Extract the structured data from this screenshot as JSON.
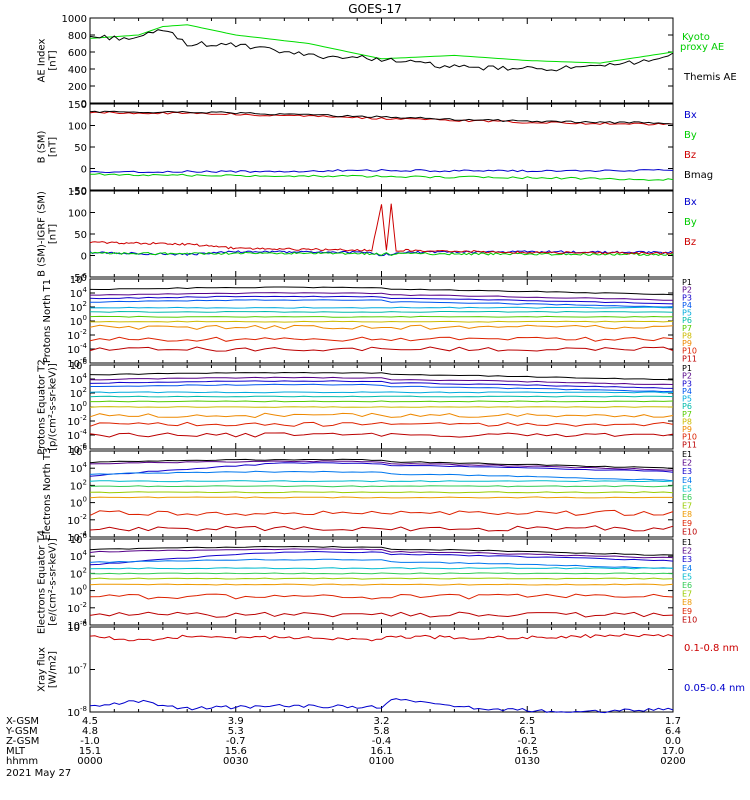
{
  "title": "GOES-17",
  "date_label": "2021 May 27",
  "footer": {
    "row_labels": [
      "X-GSM",
      "Y-GSM",
      "Z-GSM",
      "MLT",
      "hhmm"
    ],
    "columns": [
      [
        "4.5",
        "4.8",
        "-1.0",
        "15.1",
        "0000"
      ],
      [
        "3.9",
        "5.3",
        "-0.7",
        "15.6",
        "0030"
      ],
      [
        "3.2",
        "5.8",
        "-0.4",
        "16.1",
        "0100"
      ],
      [
        "2.5",
        "6.1",
        "-0.2",
        "16.5",
        "0130"
      ],
      [
        "1.7",
        "6.4",
        "0.0",
        "17.0",
        "0200"
      ]
    ]
  },
  "chart_data": [
    {
      "type": "line",
      "ylabel": "AE Index [nT]",
      "ylim": [
        0,
        1000
      ],
      "yticks": [
        "0",
        "200",
        "400",
        "600",
        "800",
        "1000"
      ],
      "legend": [
        "Kyoto proxy AE",
        "Themis AE"
      ],
      "x_minutes": [
        0,
        10,
        15,
        20,
        30,
        45,
        60,
        75,
        90,
        105,
        120
      ],
      "series": [
        {
          "name": "Kyoto proxy AE",
          "color": "#00dd00",
          "values": [
            760,
            800,
            900,
            920,
            800,
            700,
            520,
            560,
            500,
            470,
            600
          ]
        },
        {
          "name": "Themis AE",
          "color": "#000000",
          "values": [
            780,
            760,
            870,
            700,
            680,
            560,
            520,
            420,
            400,
            420,
            560
          ]
        }
      ]
    },
    {
      "type": "line",
      "ylabel": "B (SM) [nT]",
      "ylim": [
        -60,
        150
      ],
      "yticks": [
        "-50",
        "0",
        "50",
        "100",
        "150"
      ],
      "legend": [
        "Bx",
        "By",
        "Bz",
        "Bmag"
      ],
      "x_minutes": [
        0,
        30,
        60,
        90,
        120
      ],
      "series": [
        {
          "name": "Bx",
          "color": "#0000cc",
          "values": [
            -15,
            -15,
            -12,
            -14,
            -12
          ]
        },
        {
          "name": "By",
          "color": "#00cc00",
          "values": [
            -22,
            -25,
            -27,
            -30,
            -35
          ]
        },
        {
          "name": "Bz",
          "color": "#cc0000",
          "values": [
            130,
            125,
            115,
            105,
            100
          ]
        },
        {
          "name": "Bmag",
          "color": "#000000",
          "values": [
            132,
            128,
            118,
            108,
            103
          ]
        }
      ]
    },
    {
      "type": "line",
      "ylabel": "B (SM)-IGRF (SM) [nT]",
      "ylim": [
        -60,
        150
      ],
      "yticks": [
        "-50",
        "0",
        "50",
        "100",
        "150"
      ],
      "legend": [
        "Bx",
        "By",
        "Bz"
      ],
      "x_minutes": [
        0,
        20,
        30,
        58,
        60,
        61,
        62,
        63,
        64,
        66,
        90,
        120
      ],
      "series": [
        {
          "name": "Bx",
          "color": "#0000cc",
          "values": [
            0,
            -5,
            2,
            0,
            -10,
            0,
            -8,
            0,
            0,
            0,
            2,
            0
          ]
        },
        {
          "name": "By",
          "color": "#00cc00",
          "values": [
            -2,
            -3,
            -2,
            -3,
            -5,
            -3,
            -5,
            -3,
            -3,
            -3,
            -4,
            -5
          ]
        },
        {
          "name": "Bz",
          "color": "#cc0000",
          "values": [
            25,
            20,
            10,
            5,
            118,
            5,
            118,
            5,
            5,
            5,
            0,
            -2
          ]
        }
      ]
    },
    {
      "type": "line",
      "log": true,
      "ylabel": "Protons North T1",
      "yexp": [
        -6,
        6
      ],
      "yticks": [
        "10^-6",
        "10^-4",
        "10^-2",
        "10^0",
        "10^2",
        "10^4",
        "10^6"
      ],
      "legend": [
        "P1",
        "P2",
        "P3",
        "P4",
        "P5",
        "P6",
        "P7",
        "P8",
        "P9",
        "P10",
        "P11"
      ]
    },
    {
      "type": "line",
      "log": true,
      "ylabel": "Protons Equator T2 [p/(cm²-s-sr-keV)]",
      "yexp": [
        -6,
        6
      ],
      "yticks": [
        "10^-6",
        "10^-4",
        "10^-2",
        "10^0",
        "10^2",
        "10^4",
        "10^6"
      ],
      "legend": [
        "P1",
        "P2",
        "P3",
        "P4",
        "P5",
        "P6",
        "P7",
        "P8",
        "P9",
        "P10",
        "P11"
      ]
    },
    {
      "type": "line",
      "log": true,
      "ylabel": "Electrons North T3",
      "yexp": [
        -4,
        6
      ],
      "yticks": [
        "10^-4",
        "10^-2",
        "10^0",
        "10^2",
        "10^4",
        "10^6"
      ],
      "legend": [
        "E1",
        "E2",
        "E3",
        "E4",
        "E5",
        "E6",
        "E7",
        "E8",
        "E9",
        "E10"
      ]
    },
    {
      "type": "line",
      "log": true,
      "ylabel": "Electrons Equator T4 [e/(cm²-s-sr-keV)]",
      "yexp": [
        -4,
        6
      ],
      "yticks": [
        "10^-4",
        "10^-2",
        "10^0",
        "10^2",
        "10^4",
        "10^6"
      ],
      "legend": [
        "E1",
        "E2",
        "E3",
        "E4",
        "E5",
        "E6",
        "E7",
        "E8",
        "E9",
        "E10"
      ]
    },
    {
      "type": "line",
      "log": true,
      "ylabel": "Xray flux [W/m2]",
      "yexp": [
        -8,
        -6
      ],
      "yticks": [
        "10^-8",
        "10^-7",
        "10^-6"
      ],
      "legend": [
        "0.1-0.8 nm",
        "0.05-0.4 nm"
      ],
      "x_minutes": [
        0,
        10,
        20,
        40,
        60,
        62,
        80,
        100,
        120
      ],
      "series": [
        {
          "name": "0.1-0.8 nm",
          "color": "#cc0000",
          "values": [
            6e-07,
            5e-07,
            6e-07,
            5.5e-07,
            5e-07,
            6e-07,
            5.5e-07,
            6e-07,
            6.5e-07
          ]
        },
        {
          "name": "0.05-0.4 nm",
          "color": "#0000cc",
          "values": [
            1.3e-08,
            1.8e-08,
            1.2e-08,
            1.4e-08,
            1.3e-08,
            2e-08,
            1.2e-08,
            1e-08,
            1.2e-08
          ]
        }
      ]
    }
  ],
  "colors": {
    "P": [
      "#000000",
      "#550088",
      "#1100cc",
      "#0055ee",
      "#00aadd",
      "#00bbaa",
      "#55cc00",
      "#ccbb00",
      "#ee8800",
      "#dd2200",
      "#bb0000"
    ],
    "E": [
      "#000000",
      "#550088",
      "#1100cc",
      "#0077ee",
      "#00bbcc",
      "#33cc55",
      "#99cc00",
      "#ee9900",
      "#dd2200",
      "#bb0000"
    ]
  }
}
